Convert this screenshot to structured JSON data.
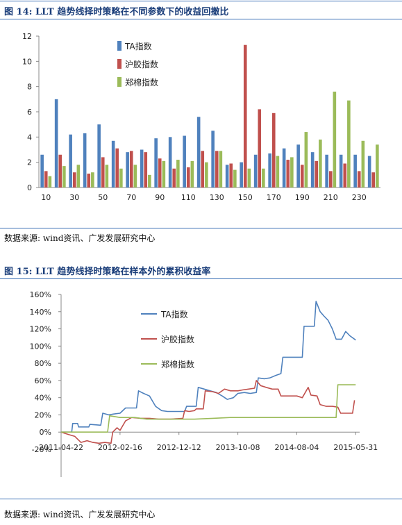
{
  "figure1": {
    "title": "图 14: LLT 趋势线择时策略在不同参数下的收益回撤比",
    "source": "数据来源: wind资讯、广发发展研究中心",
    "chart_data": {
      "type": "bar",
      "categories": [
        "10",
        "20",
        "30",
        "40",
        "50",
        "60",
        "70",
        "80",
        "90",
        "100",
        "110",
        "120",
        "130",
        "140",
        "150",
        "160",
        "170",
        "180",
        "190",
        "200",
        "210",
        "220",
        "230",
        "240"
      ],
      "x_tick_labels": [
        "10",
        "30",
        "50",
        "70",
        "90",
        "110",
        "130",
        "150",
        "170",
        "190",
        "210",
        "230"
      ],
      "ylim": [
        0,
        12
      ],
      "y_ticks": [
        0,
        2,
        4,
        6,
        8,
        10,
        12
      ],
      "legend_position": "top-left",
      "series": [
        {
          "name": "TA指数",
          "color": "#4f81bd",
          "values": [
            2.6,
            7.0,
            4.2,
            4.3,
            5.0,
            3.7,
            2.8,
            3.0,
            3.9,
            4.0,
            4.1,
            5.6,
            4.5,
            1.8,
            2.0,
            2.6,
            2.7,
            3.1,
            3.4,
            2.8,
            2.6,
            2.6,
            2.6,
            2.5
          ]
        },
        {
          "name": "沪胶指数",
          "color": "#c0504d",
          "values": [
            1.3,
            2.6,
            1.2,
            1.1,
            2.4,
            3.1,
            2.9,
            2.8,
            2.3,
            1.5,
            1.6,
            2.9,
            2.9,
            1.9,
            11.3,
            6.2,
            5.9,
            2.2,
            1.8,
            2.1,
            1.3,
            1.9,
            1.3,
            1.2
          ]
        },
        {
          "name": "郑棉指数",
          "color": "#9bbb59",
          "values": [
            0.9,
            1.7,
            1.8,
            1.2,
            1.8,
            1.5,
            1.8,
            1.0,
            2.1,
            2.2,
            2.1,
            2.0,
            2.9,
            1.4,
            1.5,
            1.5,
            2.5,
            2.4,
            4.4,
            3.8,
            7.6,
            6.9,
            3.7,
            3.4
          ]
        }
      ]
    }
  },
  "figure2": {
    "title": "图 15: LLT 趋势线择时策略在样本外的累积收益率",
    "source": "数据来源: wind资讯、广发发展研究中心",
    "chart_data": {
      "type": "line",
      "x_tick_labels": [
        "2011-04-22",
        "2012-02-16",
        "2012-12-12",
        "2013-10-08",
        "2014-08-04",
        "2015-05-31"
      ],
      "y_tick_labels": [
        "-20%",
        "0%",
        "20%",
        "40%",
        "60%",
        "80%",
        "100%",
        "120%",
        "140%",
        "160%"
      ],
      "ylim": [
        -0.2,
        1.6
      ],
      "xlim": [
        "2011-04-22",
        "2015-06-20"
      ],
      "legend_position": "top-left",
      "series": [
        {
          "name": "TA指数",
          "color": "#4f81bd",
          "points": [
            [
              "2011-04-22",
              0.0
            ],
            [
              "2011-06-15",
              0.0
            ],
            [
              "2011-06-20",
              0.1
            ],
            [
              "2011-07-15",
              0.1
            ],
            [
              "2011-07-20",
              0.06
            ],
            [
              "2011-09-10",
              0.06
            ],
            [
              "2011-09-15",
              0.09
            ],
            [
              "2011-11-10",
              0.08
            ],
            [
              "2011-11-20",
              0.22
            ],
            [
              "2011-12-20",
              0.2
            ],
            [
              "2012-01-15",
              0.21
            ],
            [
              "2012-02-16",
              0.22
            ],
            [
              "2012-03-15",
              0.28
            ],
            [
              "2012-05-10",
              0.28
            ],
            [
              "2012-05-20",
              0.48
            ],
            [
              "2012-06-15",
              0.45
            ],
            [
              "2012-07-15",
              0.42
            ],
            [
              "2012-08-15",
              0.3
            ],
            [
              "2012-09-15",
              0.25
            ],
            [
              "2012-10-15",
              0.24
            ],
            [
              "2012-11-15",
              0.24
            ],
            [
              "2013-01-10",
              0.24
            ],
            [
              "2013-01-20",
              0.3
            ],
            [
              "2013-03-10",
              0.3
            ],
            [
              "2013-03-20",
              0.52
            ],
            [
              "2013-04-20",
              0.5
            ],
            [
              "2013-05-20",
              0.48
            ],
            [
              "2013-06-20",
              0.46
            ],
            [
              "2013-07-20",
              0.42
            ],
            [
              "2013-08-15",
              0.38
            ],
            [
              "2013-09-15",
              0.4
            ],
            [
              "2013-10-08",
              0.45
            ],
            [
              "2013-11-10",
              0.46
            ],
            [
              "2013-12-10",
              0.45
            ],
            [
              "2014-01-10",
              0.46
            ],
            [
              "2014-01-20",
              0.63
            ],
            [
              "2014-02-20",
              0.62
            ],
            [
              "2014-03-20",
              0.63
            ],
            [
              "2014-04-20",
              0.66
            ],
            [
              "2014-05-15",
              0.68
            ],
            [
              "2014-05-25",
              0.87
            ],
            [
              "2014-08-04",
              0.87
            ],
            [
              "2014-09-01",
              0.87
            ],
            [
              "2014-09-10",
              1.23
            ],
            [
              "2014-11-01",
              1.23
            ],
            [
              "2014-11-10",
              1.52
            ],
            [
              "2014-12-01",
              1.4
            ],
            [
              "2014-12-20",
              1.35
            ],
            [
              "2015-01-10",
              1.3
            ],
            [
              "2015-02-01",
              1.2
            ],
            [
              "2015-02-20",
              1.08
            ],
            [
              "2015-03-20",
              1.08
            ],
            [
              "2015-04-10",
              1.17
            ],
            [
              "2015-05-01",
              1.12
            ],
            [
              "2015-05-31",
              1.07
            ]
          ]
        },
        {
          "name": "沪胶指数",
          "color": "#c0504d",
          "points": [
            [
              "2011-04-22",
              0.0
            ],
            [
              "2011-06-01",
              -0.03
            ],
            [
              "2011-07-01",
              -0.05
            ],
            [
              "2011-08-01",
              -0.12
            ],
            [
              "2011-09-01",
              -0.1
            ],
            [
              "2011-10-01",
              -0.12
            ],
            [
              "2011-11-01",
              -0.13
            ],
            [
              "2011-12-01",
              -0.12
            ],
            [
              "2012-01-01",
              -0.13
            ],
            [
              "2012-01-10",
              0.0
            ],
            [
              "2012-02-01",
              0.05
            ],
            [
              "2012-02-16",
              0.02
            ],
            [
              "2012-03-15",
              0.13
            ],
            [
              "2012-04-15",
              0.17
            ],
            [
              "2012-06-01",
              0.16
            ],
            [
              "2012-07-15",
              0.16
            ],
            [
              "2012-09-01",
              0.15
            ],
            [
              "2012-11-01",
              0.15
            ],
            [
              "2013-01-01",
              0.16
            ],
            [
              "2013-01-10",
              0.25
            ],
            [
              "2013-02-01",
              0.24
            ],
            [
              "2013-03-01",
              0.25
            ],
            [
              "2013-03-10",
              0.27
            ],
            [
              "2013-04-15",
              0.27
            ],
            [
              "2013-04-25",
              0.48
            ],
            [
              "2013-06-01",
              0.47
            ],
            [
              "2013-07-01",
              0.45
            ],
            [
              "2013-08-01",
              0.5
            ],
            [
              "2013-09-01",
              0.48
            ],
            [
              "2013-10-08",
              0.48
            ],
            [
              "2013-11-01",
              0.49
            ],
            [
              "2013-12-01",
              0.5
            ],
            [
              "2014-01-01",
              0.51
            ],
            [
              "2014-01-10",
              0.6
            ],
            [
              "2014-02-01",
              0.54
            ],
            [
              "2014-03-01",
              0.52
            ],
            [
              "2014-04-01",
              0.5
            ],
            [
              "2014-05-01",
              0.5
            ],
            [
              "2014-05-15",
              0.42
            ],
            [
              "2014-06-15",
              0.42
            ],
            [
              "2014-08-04",
              0.42
            ],
            [
              "2014-09-01",
              0.4
            ],
            [
              "2014-10-01",
              0.52
            ],
            [
              "2014-10-15",
              0.43
            ],
            [
              "2014-11-15",
              0.42
            ],
            [
              "2014-12-01",
              0.32
            ],
            [
              "2015-01-01",
              0.3
            ],
            [
              "2015-02-01",
              0.3
            ],
            [
              "2015-03-01",
              0.29
            ],
            [
              "2015-03-15",
              0.22
            ],
            [
              "2015-05-15",
              0.22
            ],
            [
              "2015-05-25",
              0.37
            ]
          ]
        },
        {
          "name": "郑棉指数",
          "color": "#9bbb59",
          "points": [
            [
              "2011-04-22",
              0.0
            ],
            [
              "2011-07-15",
              0.0
            ],
            [
              "2011-10-15",
              0.0
            ],
            [
              "2011-12-15",
              0.0
            ],
            [
              "2011-12-25",
              0.19
            ],
            [
              "2012-02-16",
              0.17
            ],
            [
              "2012-05-01",
              0.17
            ],
            [
              "2012-07-01",
              0.15
            ],
            [
              "2012-10-01",
              0.15
            ],
            [
              "2012-12-12",
              0.15
            ],
            [
              "2013-03-01",
              0.15
            ],
            [
              "2013-06-01",
              0.16
            ],
            [
              "2013-09-01",
              0.17
            ],
            [
              "2013-10-08",
              0.17
            ],
            [
              "2014-01-01",
              0.17
            ],
            [
              "2014-04-01",
              0.17
            ],
            [
              "2014-08-04",
              0.17
            ],
            [
              "2014-11-01",
              0.17
            ],
            [
              "2015-01-01",
              0.17
            ],
            [
              "2015-02-20",
              0.17
            ],
            [
              "2015-03-01",
              0.55
            ],
            [
              "2015-05-31",
              0.55
            ]
          ]
        }
      ]
    }
  }
}
